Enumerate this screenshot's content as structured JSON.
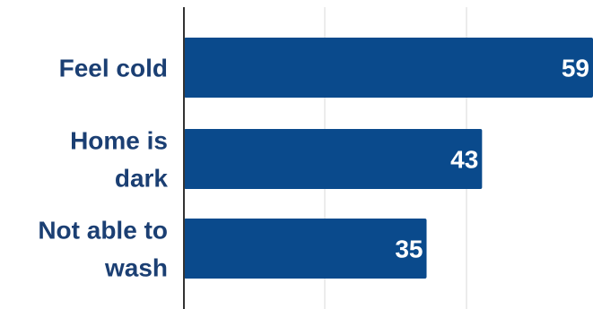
{
  "chart_data": {
    "type": "bar",
    "orientation": "horizontal",
    "categories": [
      [
        "Feel cold"
      ],
      [
        "Home is",
        "dark"
      ],
      [
        "Not able to",
        "wash"
      ]
    ],
    "values": [
      59,
      43,
      35
    ],
    "xlim": [
      0,
      59
    ],
    "grid": true,
    "title": "",
    "xlabel": "",
    "ylabel": ""
  },
  "colors": {
    "bar": "#0a4a8c",
    "category_text": "#1b3f73",
    "value_text": "#ffffff",
    "grid": "#d9d9d9",
    "axis": "#333333",
    "background": "#ffffff"
  }
}
